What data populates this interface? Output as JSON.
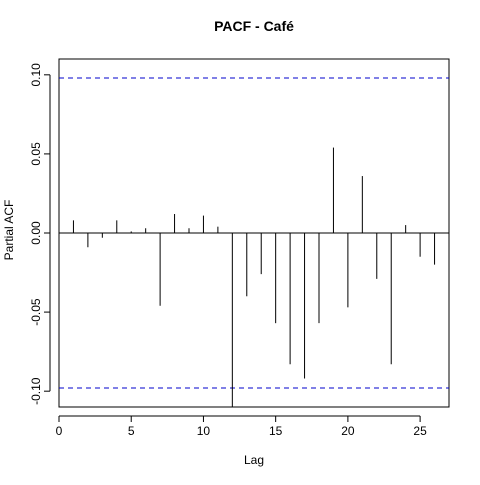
{
  "chart_data": {
    "type": "bar",
    "title": "PACF - Café",
    "xlabel": "Lag",
    "ylabel": "Partial ACF",
    "xlim": [
      0,
      27
    ],
    "ylim": [
      -0.11,
      0.11
    ],
    "x_ticks": [
      0,
      5,
      10,
      15,
      20,
      25
    ],
    "x_tick_labels": [
      "0",
      "5",
      "10",
      "15",
      "20",
      "25"
    ],
    "y_ticks": [
      -0.1,
      -0.05,
      0.0,
      0.05,
      0.1
    ],
    "y_tick_labels": [
      "-0.10",
      "-0.05",
      "0.00",
      "0.05",
      "0.10"
    ],
    "confidence_bounds": [
      0.098,
      -0.098
    ],
    "grid": false,
    "lags": [
      1,
      2,
      3,
      4,
      5,
      6,
      7,
      8,
      9,
      10,
      11,
      12,
      13,
      14,
      15,
      16,
      17,
      18,
      19,
      20,
      21,
      22,
      23,
      24,
      25,
      26
    ],
    "values": [
      0.008,
      -0.009,
      -0.003,
      0.008,
      0.001,
      0.003,
      -0.046,
      0.012,
      0.003,
      0.011,
      0.004,
      -0.11,
      -0.04,
      -0.026,
      -0.057,
      -0.083,
      -0.092,
      -0.057,
      0.054,
      -0.047,
      0.036,
      -0.029,
      -0.083,
      0.005,
      -0.015,
      -0.02
    ],
    "colors": {
      "spike": "#000000",
      "bound": "#0000cc",
      "zero_line": "#000000",
      "axis": "#000000"
    }
  }
}
